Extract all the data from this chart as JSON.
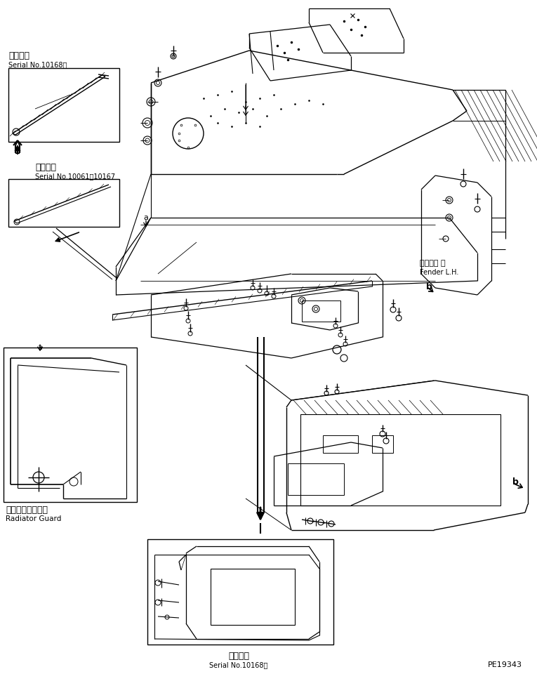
{
  "bg_color": "#ffffff",
  "fig_width": 7.65,
  "fig_height": 9.97,
  "dpi": 100,
  "label_tsuyou": "通用号機",
  "serial_10168": "Serial No.10168～",
  "label_tekiyo": "適用号機",
  "serial_10061": "Serial No.10061～10167",
  "fender_jp": "フェンダ 左",
  "fender_en": "Fender L.H.",
  "radiator_jp": "ラジエータガード",
  "radiator_en": "Radiator Guard",
  "bottom_tsuyou": "通用号機",
  "bottom_serial": "Serial No.10168～",
  "part_no": "PE19343"
}
